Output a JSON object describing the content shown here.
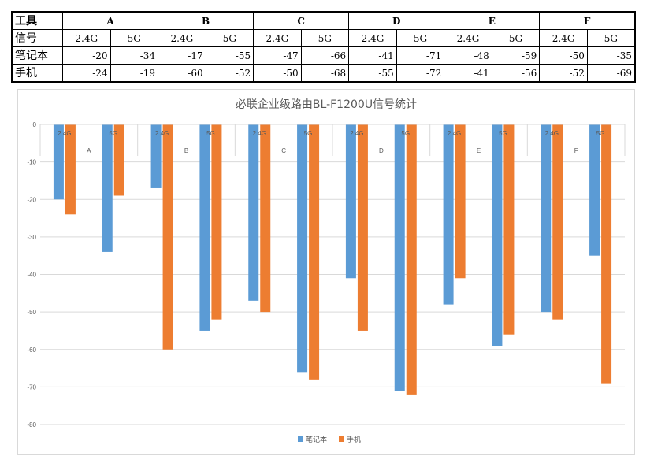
{
  "table": {
    "corner_label": "工具",
    "band_row_label": "信号",
    "groups": [
      "A",
      "B",
      "C",
      "D",
      "E",
      "F"
    ],
    "bands": [
      "2.4G",
      "5G"
    ],
    "rows": [
      {
        "label": "笔记本",
        "values": [
          -20,
          -34,
          -17,
          -55,
          -47,
          -66,
          -41,
          -71,
          -48,
          -59,
          -50,
          -35
        ]
      },
      {
        "label": "手机",
        "values": [
          -24,
          -19,
          -60,
          -52,
          -50,
          -68,
          -55,
          -72,
          -41,
          -56,
          -52,
          -69
        ]
      }
    ]
  },
  "chart_data": {
    "type": "bar",
    "title": "必联企业级路由BL-F1200U信号统计",
    "groups": [
      "A",
      "B",
      "C",
      "D",
      "E",
      "F"
    ],
    "categories": [
      "2.4G",
      "5G",
      "2.4G",
      "5G",
      "2.4G",
      "5G",
      "2.4G",
      "5G",
      "2.4G",
      "5G",
      "2.4G",
      "5G"
    ],
    "series": [
      {
        "name": "笔记本",
        "color": "#5b9bd5",
        "values": [
          -20,
          -34,
          -17,
          -55,
          -47,
          -66,
          -41,
          -71,
          -48,
          -59,
          -50,
          -35
        ]
      },
      {
        "name": "手机",
        "color": "#ed7d31",
        "values": [
          -24,
          -19,
          -60,
          -52,
          -50,
          -68,
          -55,
          -72,
          -41,
          -56,
          -52,
          -69
        ]
      }
    ],
    "ylim": [
      -80,
      0
    ],
    "yticks": [
      0,
      -10,
      -20,
      -30,
      -40,
      -50,
      -60,
      -70,
      -80
    ],
    "xlabel": "",
    "ylabel": "",
    "grid": true,
    "legend": "bottom-center"
  }
}
